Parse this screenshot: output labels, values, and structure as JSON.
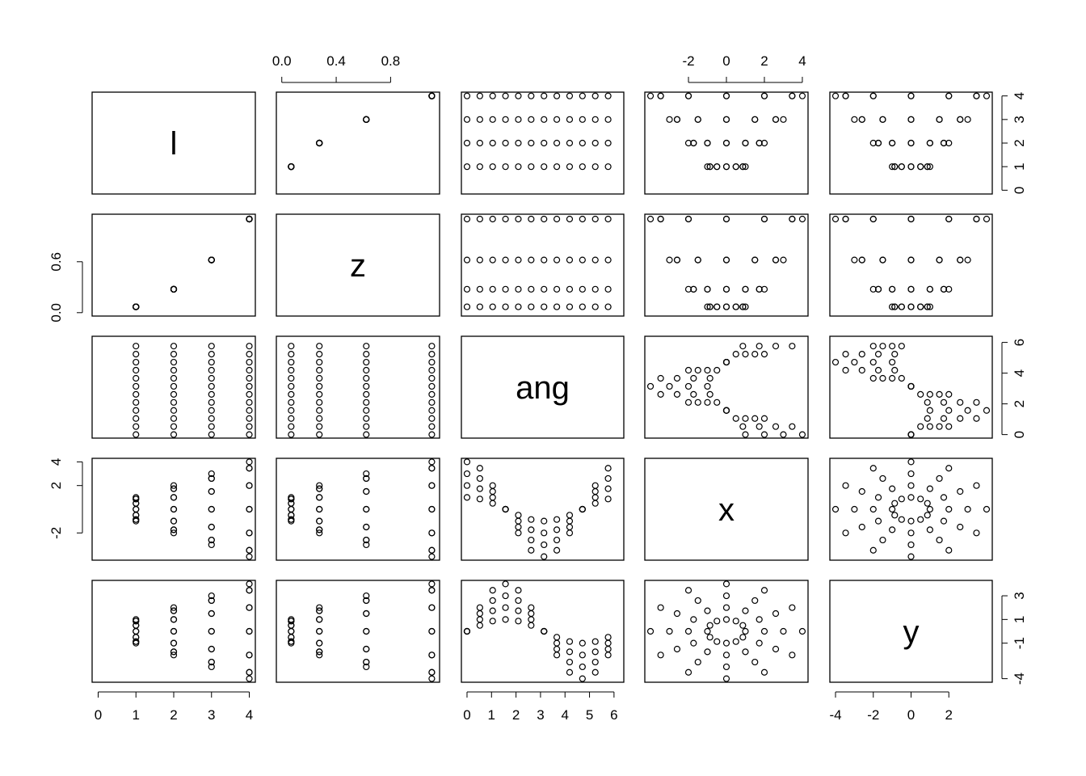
{
  "chart_data": {
    "type": "scatter_matrix",
    "variables": [
      {
        "name": "l",
        "lim": [
          -0.16,
          4.16
        ],
        "xticks": [
          0,
          1,
          2,
          3,
          4
        ],
        "yticks": [
          0,
          1,
          2,
          3,
          4
        ],
        "values": [
          1,
          1,
          1,
          1,
          1,
          1,
          1,
          1,
          1,
          1,
          1,
          1,
          2,
          2,
          2,
          2,
          2,
          2,
          2,
          2,
          2,
          2,
          2,
          2,
          3,
          3,
          3,
          3,
          3,
          3,
          3,
          3,
          3,
          3,
          3,
          3,
          4,
          4,
          4,
          4,
          4,
          4,
          4,
          4,
          4,
          4,
          4,
          4
        ]
      },
      {
        "name": "z",
        "lim": [
          -0.04,
          1.16
        ],
        "xticks": [
          {
            "value": 0,
            "label": "0.0"
          },
          0.4,
          0.8
        ],
        "yticks": [
          {
            "value": 0,
            "label": "0.0"
          },
          0.6
        ],
        "values": [
          0.069,
          0.069,
          0.069,
          0.069,
          0.069,
          0.069,
          0.069,
          0.069,
          0.069,
          0.069,
          0.069,
          0.069,
          0.276,
          0.276,
          0.276,
          0.276,
          0.276,
          0.276,
          0.276,
          0.276,
          0.276,
          0.276,
          0.276,
          0.276,
          0.621,
          0.621,
          0.621,
          0.621,
          0.621,
          0.621,
          0.621,
          0.621,
          0.621,
          0.621,
          0.621,
          0.621,
          1.103,
          1.103,
          1.103,
          1.103,
          1.103,
          1.103,
          1.103,
          1.103,
          1.103,
          1.103,
          1.103,
          1.103
        ]
      },
      {
        "name": "ang",
        "lim": [
          -0.23,
          6.4
        ],
        "xticks": [
          0,
          1,
          2,
          3,
          4,
          5,
          6
        ],
        "yticks": [
          0,
          2,
          4,
          6
        ],
        "values": [
          0,
          0.524,
          1.047,
          1.571,
          2.094,
          2.618,
          3.142,
          3.665,
          4.189,
          4.712,
          5.236,
          5.76,
          0,
          0.524,
          1.047,
          1.571,
          2.094,
          2.618,
          3.142,
          3.665,
          4.189,
          4.712,
          5.236,
          5.76,
          0,
          0.524,
          1.047,
          1.571,
          2.094,
          2.618,
          3.142,
          3.665,
          4.189,
          4.712,
          5.236,
          5.76,
          0,
          0.524,
          1.047,
          1.571,
          2.094,
          2.618,
          3.142,
          3.665,
          4.189,
          4.712,
          5.236,
          5.76
        ]
      },
      {
        "name": "x",
        "lim": [
          -4.3,
          4.3
        ],
        "xticks": [
          -2,
          0,
          2,
          4
        ],
        "yticks": [
          -2,
          2,
          4
        ],
        "values": [
          1,
          0.866,
          0.5,
          0,
          -0.5,
          -0.866,
          -1,
          -0.866,
          -0.5,
          0,
          0.5,
          0.866,
          2,
          1.732,
          1,
          0,
          -1,
          -1.732,
          -2,
          -1.732,
          -1,
          0,
          1,
          1.732,
          3,
          2.598,
          1.5,
          0,
          -1.5,
          -2.598,
          -3,
          -2.598,
          -1.5,
          0,
          1.5,
          2.598,
          4,
          3.464,
          2,
          0,
          -2,
          -3.464,
          -4,
          -3.464,
          -2,
          0,
          2,
          3.464
        ]
      },
      {
        "name": "y",
        "lim": [
          -4.3,
          4.3
        ],
        "xticks": [
          -4,
          -2,
          0,
          2
        ],
        "yticks": [
          -4,
          -1,
          1,
          3
        ],
        "values": [
          0,
          0.5,
          0.866,
          1,
          0.866,
          0.5,
          0,
          -0.5,
          -0.866,
          -1,
          -0.866,
          -0.5,
          0,
          1,
          1.732,
          2,
          1.732,
          1,
          0,
          -1,
          -1.732,
          -2,
          -1.732,
          -1,
          0,
          1.5,
          2.598,
          3,
          2.598,
          1.5,
          0,
          -1.5,
          -2.598,
          -3,
          -2.598,
          -1.5,
          0,
          2,
          3.464,
          4,
          3.464,
          2,
          0,
          -2,
          -3.464,
          -4,
          -3.464,
          -2
        ]
      }
    ]
  }
}
